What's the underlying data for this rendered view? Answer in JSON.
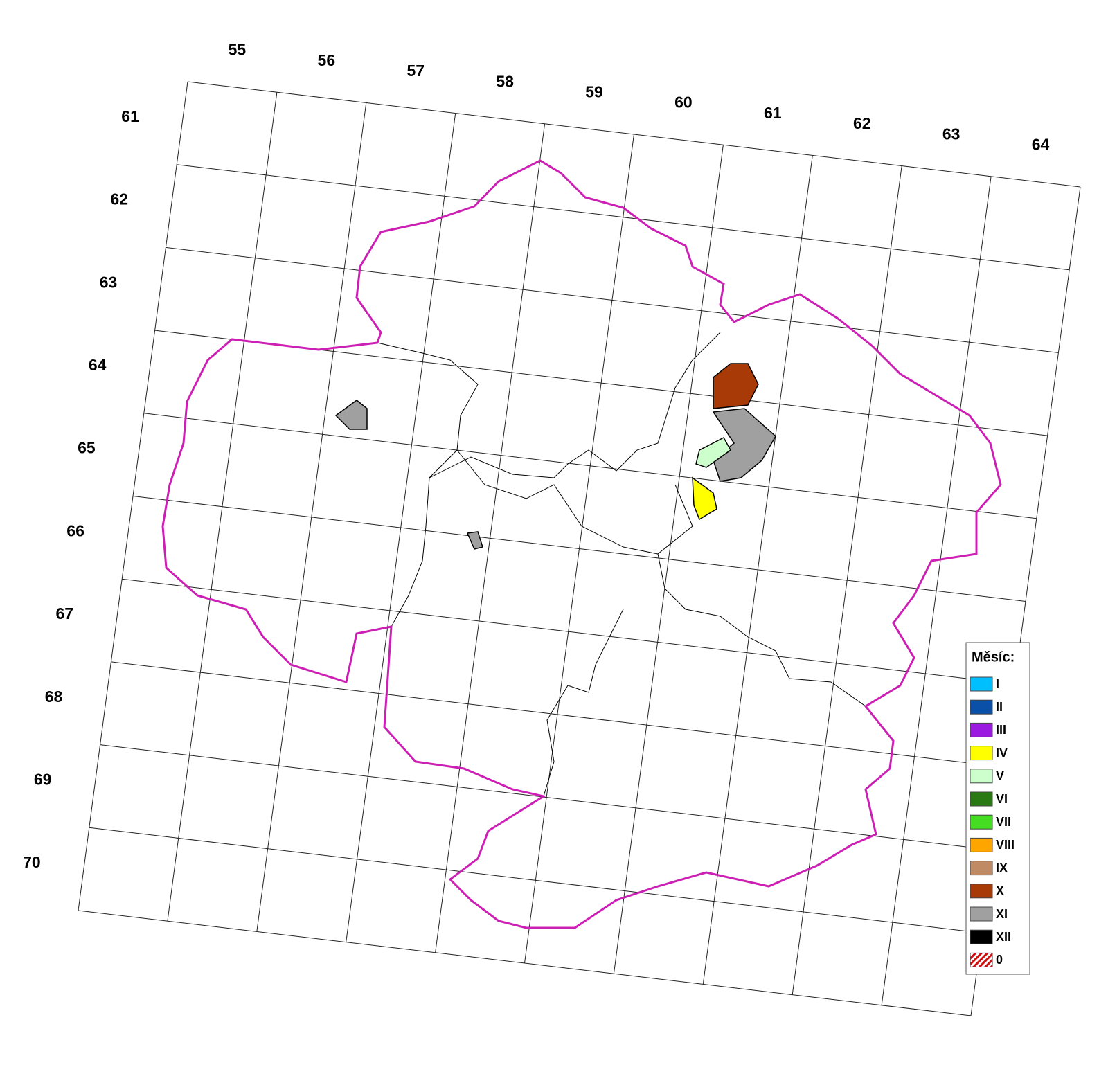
{
  "map": {
    "column_labels": [
      55,
      56,
      57,
      58,
      59,
      60,
      61,
      62,
      63,
      64
    ],
    "row_labels": [
      61,
      62,
      63,
      64,
      65,
      66,
      67,
      68,
      69,
      70
    ],
    "legend": {
      "title": "Měsíc:",
      "items": [
        {
          "label": "I",
          "color": "#00bfff"
        },
        {
          "label": "II",
          "color": "#0a50a8"
        },
        {
          "label": "III",
          "color": "#9b1be0"
        },
        {
          "label": "IV",
          "color": "#ffff00"
        },
        {
          "label": "V",
          "color": "#ccffcc"
        },
        {
          "label": "VI",
          "color": "#2a7a14"
        },
        {
          "label": "VII",
          "color": "#44dd22"
        },
        {
          "label": "VIII",
          "color": "#ffa500"
        },
        {
          "label": "IX",
          "color": "#c08a64"
        },
        {
          "label": "X",
          "color": "#a83a08"
        },
        {
          "label": "XI",
          "color": "#a0a0a0"
        },
        {
          "label": "XII",
          "color": "#000000"
        },
        {
          "label": "0",
          "color": "hatch"
        }
      ]
    }
  }
}
